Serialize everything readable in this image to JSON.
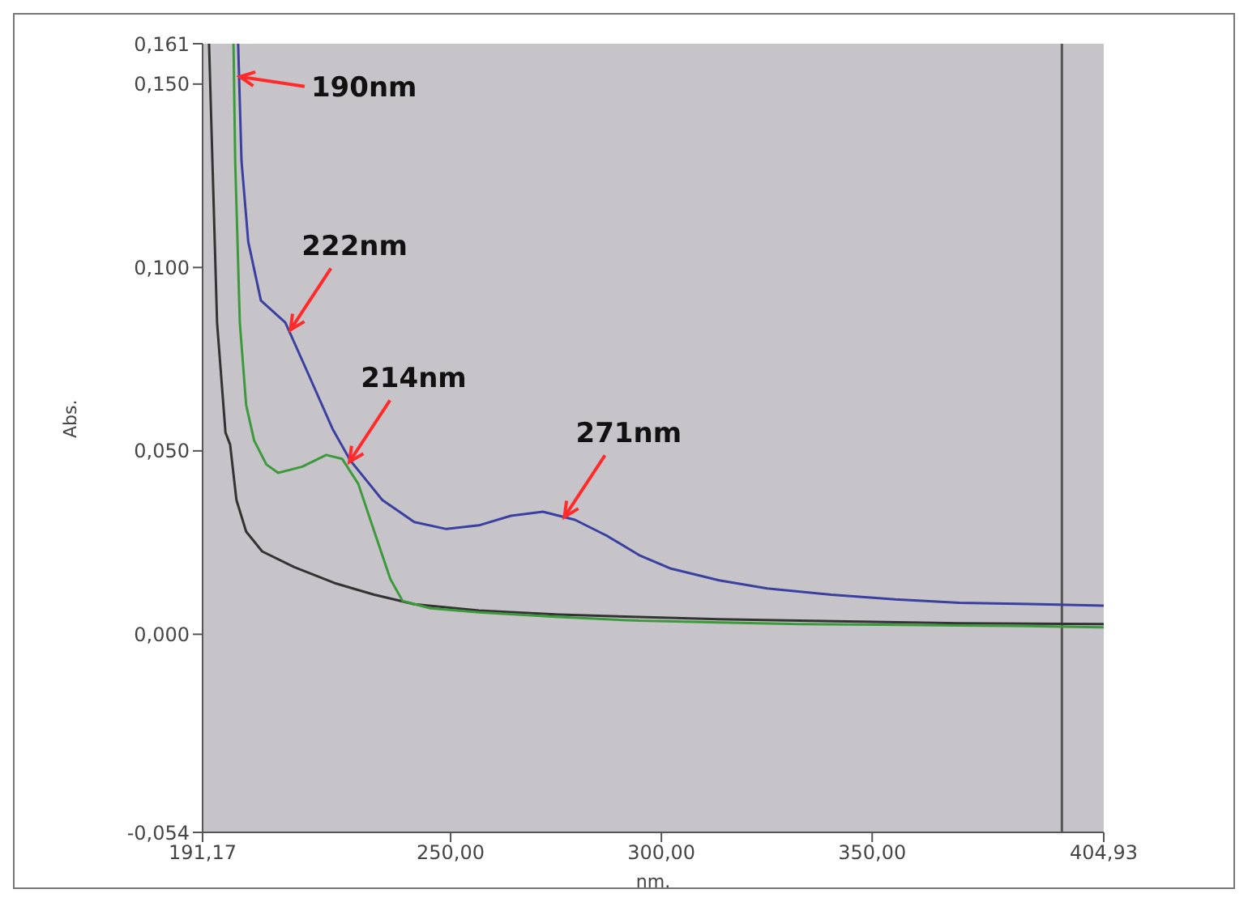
{
  "chart_data": {
    "type": "line",
    "xlabel": "nm.",
    "ylabel": "Abs.",
    "xlim": [
      191.17,
      404.93
    ],
    "ylim": [
      -0.054,
      0.161
    ],
    "xticks": [
      {
        "value": 191.17,
        "label": "191,17"
      },
      {
        "value": 250,
        "label": "250,00"
      },
      {
        "value": 300,
        "label": "300,00"
      },
      {
        "value": 350,
        "label": "350,00"
      },
      {
        "value": 404.93,
        "label": "404,93"
      }
    ],
    "yticks": [
      {
        "value": -0.054,
        "label": "-0,054"
      },
      {
        "value": 0,
        "label": "0,000"
      },
      {
        "value": 0.05,
        "label": "0,050"
      },
      {
        "value": 0.1,
        "label": "0,100"
      },
      {
        "value": 0.15,
        "label": "0,150"
      },
      {
        "value": 0.161,
        "label": "0,161"
      }
    ],
    "grid": false,
    "legend": false,
    "marker": "none",
    "line_style": "solid",
    "series": [
      {
        "color": "#333333",
        "x": [
          192.7,
          193.5,
          194.6,
          196.6,
          197.7,
          199.2,
          201.5,
          205.3,
          212.9,
          222.4,
          231.9,
          241.4,
          256.7,
          275.7,
          294.7,
          313.7,
          332.7,
          370.7,
          404.93
        ],
        "values": [
          0.161,
          0.129,
          0.085,
          0.055,
          0.0517,
          0.0366,
          0.028,
          0.0226,
          0.0183,
          0.014,
          0.0108,
          0.0082,
          0.0065,
          0.0054,
          0.0047,
          0.0041,
          0.0037,
          0.003,
          0.0028
        ]
      },
      {
        "color": "#3c9a3c",
        "x": [
          198.5,
          198.9,
          200,
          201.5,
          203.4,
          206.3,
          209.1,
          214.8,
          220.5,
          224.3,
          228.1,
          231.9,
          235.7,
          238.6,
          245.2,
          256.7,
          275.7,
          294.7,
          313.7,
          332.7,
          351.7,
          370.7,
          389.7,
          404.93
        ],
        "values": [
          0.161,
          0.129,
          0.085,
          0.0625,
          0.0528,
          0.0463,
          0.044,
          0.0457,
          0.0489,
          0.0478,
          0.041,
          0.028,
          0.0151,
          0.0091,
          0.0071,
          0.006,
          0.0047,
          0.0037,
          0.0032,
          0.0028,
          0.0026,
          0.0024,
          0.0022,
          0.0019
        ]
      },
      {
        "color": "#3a3fa0",
        "x": [
          199.6,
          200.4,
          202,
          205,
          210.8,
          216,
          222,
          226.2,
          233.8,
          241.4,
          249,
          256.7,
          264.3,
          271.9,
          279.5,
          287,
          294.7,
          302.3,
          313.7,
          325.1,
          340.3,
          355.5,
          370.7,
          389.7,
          404.93
        ],
        "values": [
          0.161,
          0.129,
          0.107,
          0.091,
          0.085,
          0.0716,
          0.056,
          0.0474,
          0.0366,
          0.0306,
          0.0287,
          0.0297,
          0.0323,
          0.0334,
          0.0312,
          0.0269,
          0.0216,
          0.0179,
          0.0147,
          0.0125,
          0.0108,
          0.0095,
          0.0086,
          0.0082,
          0.0078
        ]
      }
    ],
    "ref_lines": [
      {
        "axis": "x",
        "value": 395,
        "color": "#555555"
      }
    ],
    "annotations": [
      {
        "text": "190nm",
        "x": 200,
        "y": 0.152
      },
      {
        "text": "222nm",
        "x": 212,
        "y": 0.083
      },
      {
        "text": "214nm",
        "x": 226,
        "y": 0.047
      },
      {
        "text": "271nm",
        "x": 277,
        "y": 0.032
      }
    ]
  }
}
